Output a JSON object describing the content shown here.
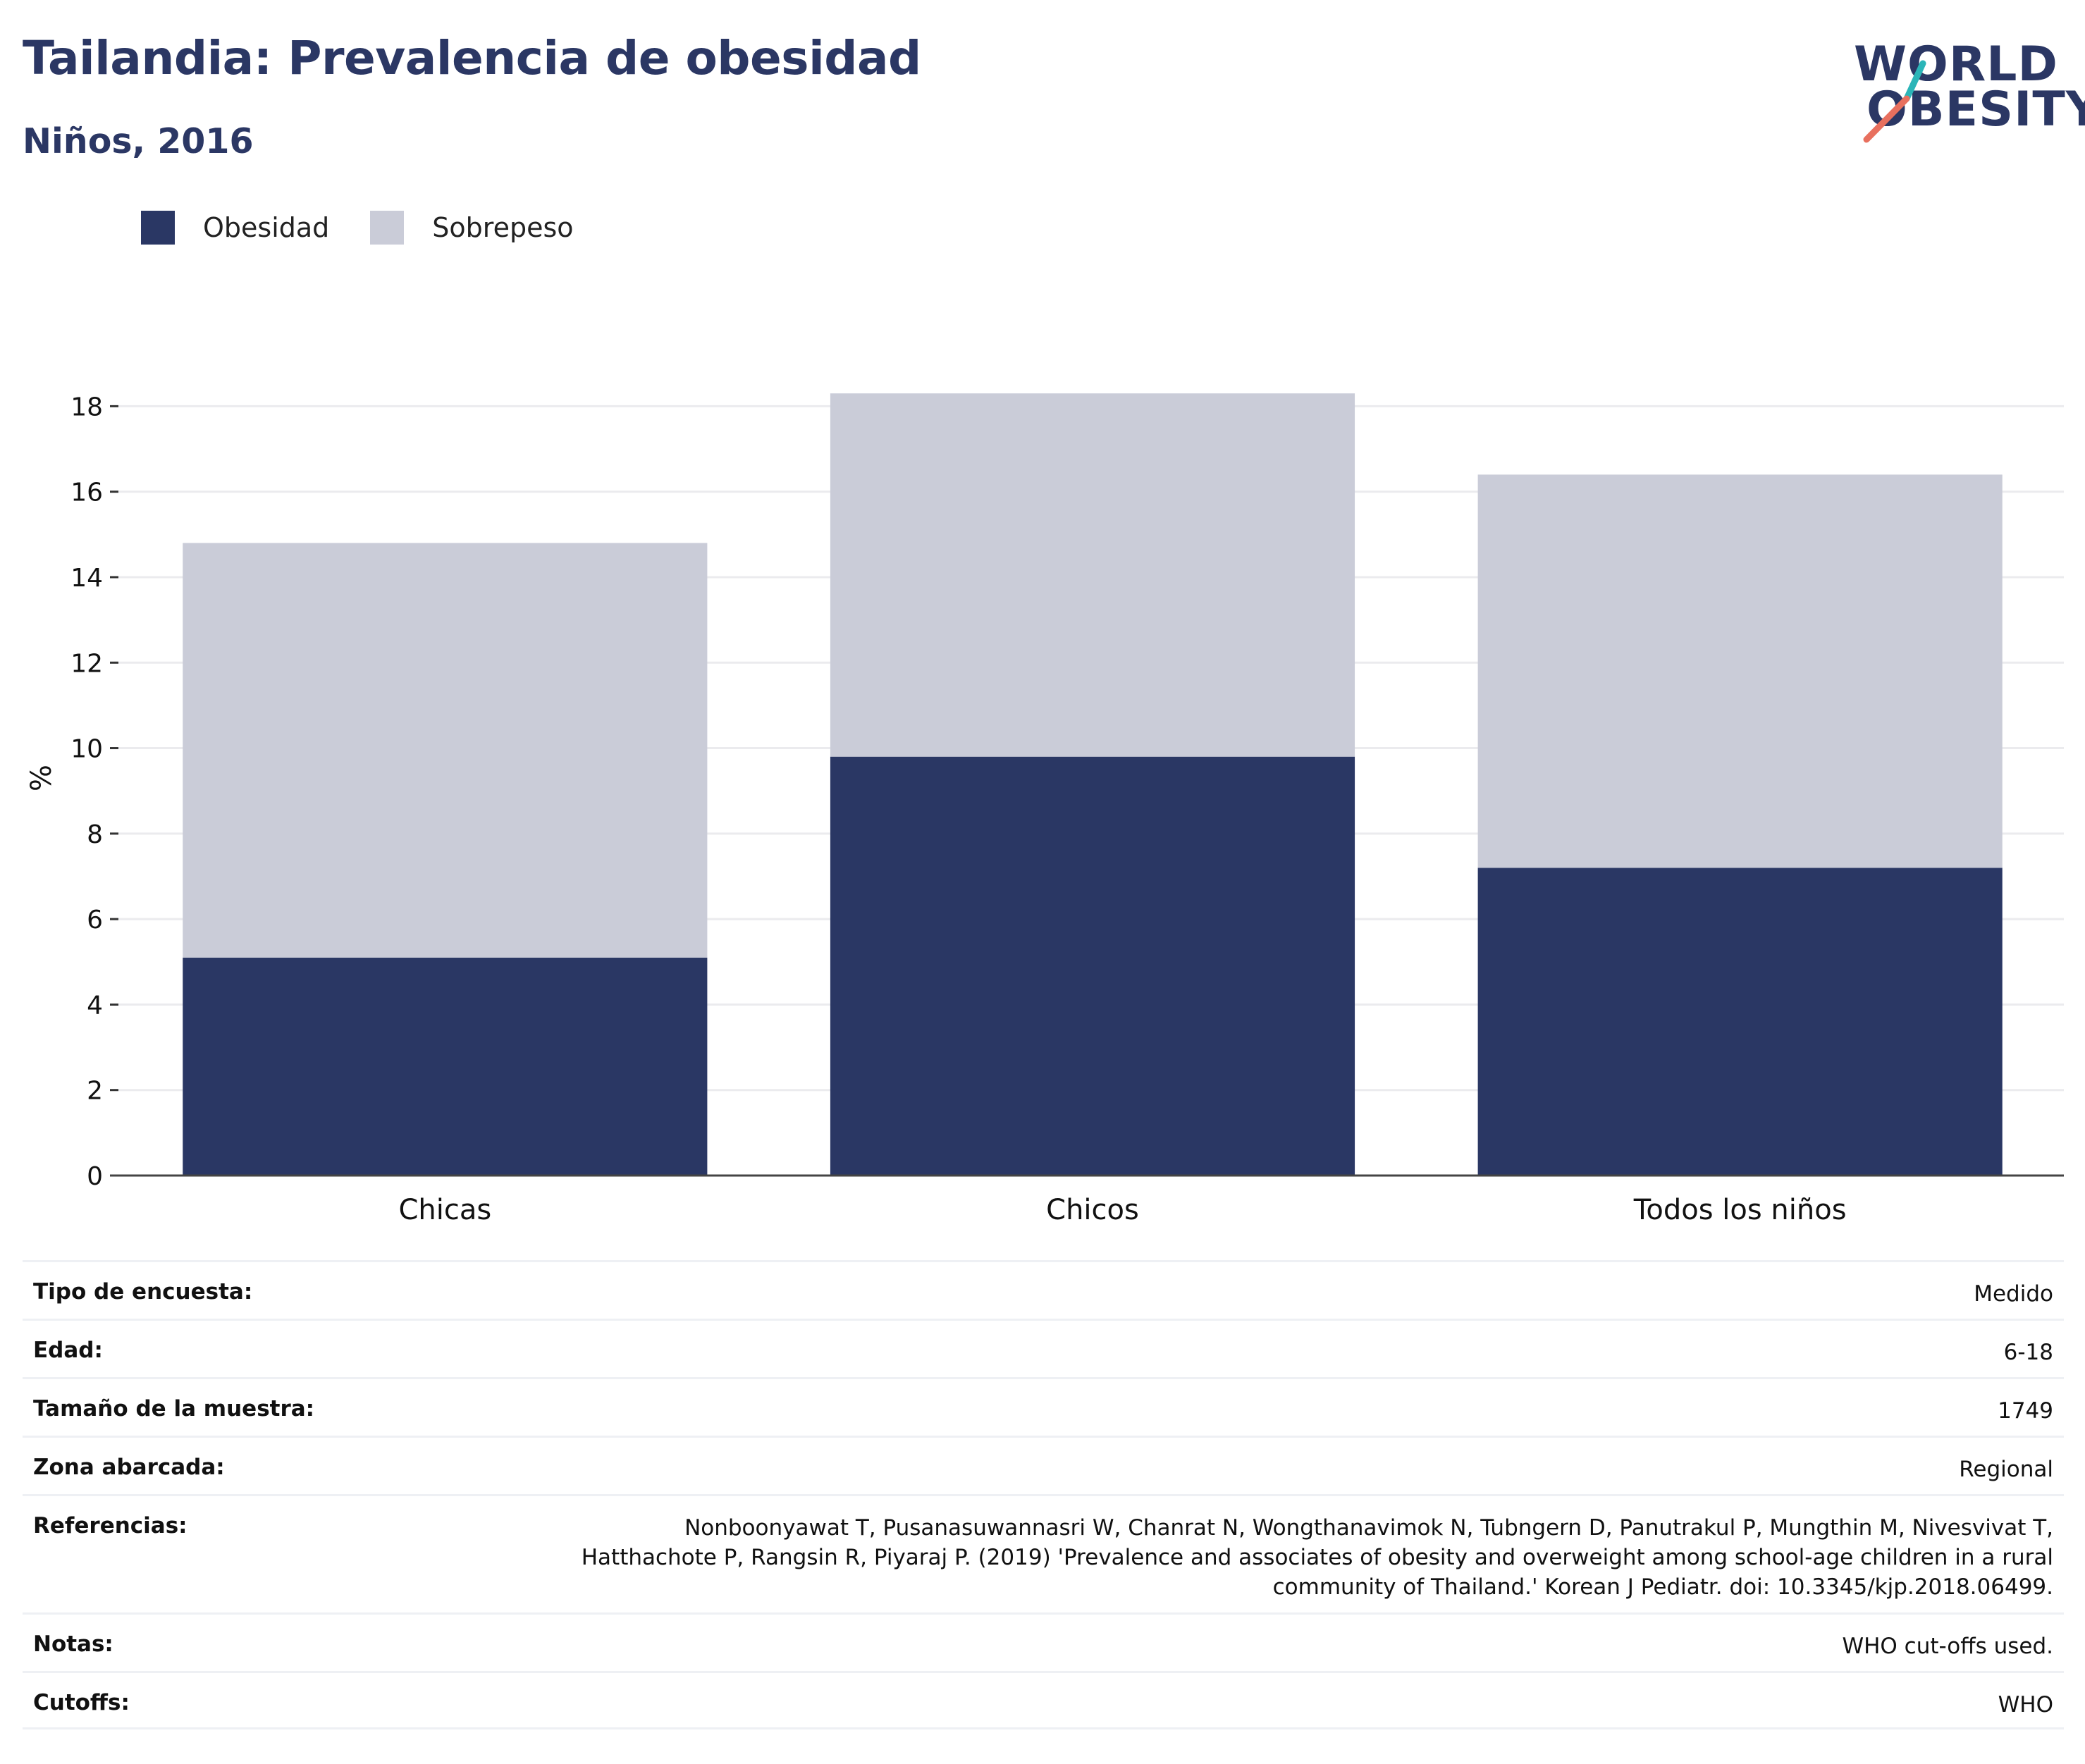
{
  "header": {
    "title": "Tailandia: Prevalencia de obesidad",
    "subtitle": "Niños, 2016"
  },
  "logo": {
    "line1": "WORLD",
    "line2": "OBESITY",
    "text_color": "#2b3764",
    "slash_top_color": "#2bb5b8",
    "slash_bottom_color": "#e8705e"
  },
  "legend": {
    "items": [
      {
        "label": "Obesidad",
        "color": "#2a3764"
      },
      {
        "label": "Sobrepeso",
        "color": "#caccd8"
      }
    ]
  },
  "chart_data": {
    "type": "bar",
    "stacked": true,
    "categories": [
      "Chicas",
      "Chicos",
      "Todos los niños"
    ],
    "series": [
      {
        "name": "Obesidad",
        "color": "#2a3764",
        "values": [
          5.1,
          9.8,
          7.2
        ]
      },
      {
        "name": "Sobrepeso",
        "color": "#caccd8",
        "values": [
          9.7,
          8.5,
          9.2
        ]
      }
    ],
    "ylabel": "%",
    "ylim": [
      0,
      18.6
    ],
    "yticks": [
      0,
      2,
      4,
      6,
      8,
      10,
      12,
      14,
      16,
      18
    ],
    "grid": true,
    "legend_position": "top-left"
  },
  "info": {
    "rows": [
      {
        "label": "Tipo de encuesta:",
        "value": "Medido"
      },
      {
        "label": "Edad:",
        "value": "6-18"
      },
      {
        "label": "Tamaño de la muestra:",
        "value": "1749"
      },
      {
        "label": "Zona abarcada:",
        "value": "Regional"
      },
      {
        "label": "Referencias:",
        "value": "Nonboonyawat T, Pusanasuwannasri W, Chanrat N, Wongthanavimok N, Tubngern D, Panutrakul P, Mungthin M, Nivesvivat T, Hatthachote P, Rangsin R, Piyaraj P. (2019) 'Prevalence and associates of obesity and overweight among school-age children in a rural community of Thailand.' Korean J Pediatr. doi: 10.3345/kjp.2018.06499."
      },
      {
        "label": "Notas:",
        "value": "WHO cut-offs used."
      },
      {
        "label": "Cutoffs:",
        "value": "WHO"
      }
    ]
  }
}
